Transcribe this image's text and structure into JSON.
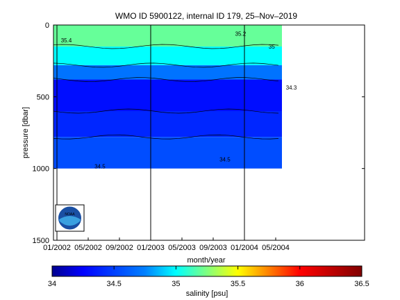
{
  "chart_data": {
    "type": "heatmap",
    "title": "WMO ID 5900122, internal ID 179, 25–Nov–2019",
    "xlabel": "month/year",
    "ylabel": "pressure [dbar]",
    "x_ticks": [
      "01/2002",
      "05/2002",
      "09/2002",
      "01/2003",
      "05/2003",
      "09/2003",
      "01/2004",
      "05/2004"
    ],
    "y_ticks": [
      "0",
      "500",
      "1000",
      "1500"
    ],
    "ylim": [
      1500,
      0
    ],
    "year_boundaries": [
      "01/2002",
      "01/2003",
      "01/2004"
    ],
    "colorbar": {
      "label": "salinity [psu]",
      "ticks": [
        "34",
        "34.5",
        "35",
        "35.5",
        "36",
        "36.5"
      ],
      "range": [
        34,
        36.5
      ],
      "colors": [
        "#00008f",
        "#0000ff",
        "#00ffff",
        "#ffff00",
        "#ff0000",
        "#800000"
      ]
    },
    "depth_layers": [
      {
        "from": 0,
        "to": 150,
        "salinity": 35.2
      },
      {
        "from": 150,
        "to": 280,
        "salinity": 35.0
      },
      {
        "from": 280,
        "to": 380,
        "salinity": 34.7
      },
      {
        "from": 380,
        "to": 600,
        "salinity": 34.3
      },
      {
        "from": 600,
        "to": 780,
        "salinity": 34.4
      },
      {
        "from": 780,
        "to": 1000,
        "salinity": 34.55
      }
    ],
    "contour_labels": [
      {
        "text": "35.4",
        "x_month": 1.2,
        "depth": 120
      },
      {
        "text": "34.5",
        "x_month": 21.5,
        "depth": 950
      },
      {
        "text": "34.5",
        "x_month": 5.5,
        "depth": 1000
      },
      {
        "text": "35.2",
        "x_month": 23.5,
        "depth": 75
      },
      {
        "text": "35",
        "x_month": 27.5,
        "depth": 165
      },
      {
        "text": "34.3",
        "x_month": 30,
        "depth": 450
      }
    ]
  },
  "logo_label": "NOAA"
}
